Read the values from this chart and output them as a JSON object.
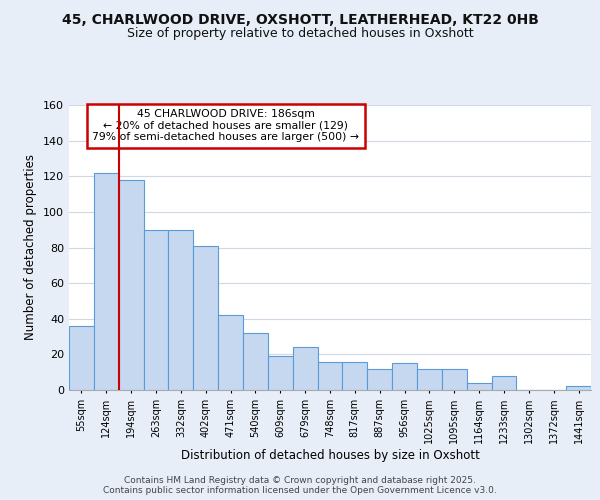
{
  "title_line1": "45, CHARLWOOD DRIVE, OXSHOTT, LEATHERHEAD, KT22 0HB",
  "title_line2": "Size of property relative to detached houses in Oxshott",
  "xlabel": "Distribution of detached houses by size in Oxshott",
  "ylabel": "Number of detached properties",
  "bar_labels": [
    "55sqm",
    "124sqm",
    "194sqm",
    "263sqm",
    "332sqm",
    "402sqm",
    "471sqm",
    "540sqm",
    "609sqm",
    "679sqm",
    "748sqm",
    "817sqm",
    "887sqm",
    "956sqm",
    "1025sqm",
    "1095sqm",
    "1164sqm",
    "1233sqm",
    "1302sqm",
    "1372sqm",
    "1441sqm"
  ],
  "bar_values": [
    36,
    122,
    118,
    90,
    90,
    81,
    42,
    32,
    19,
    24,
    16,
    16,
    12,
    15,
    12,
    12,
    4,
    8,
    0,
    0,
    2
  ],
  "bar_color": "#c5d8f0",
  "bar_edge_color": "#5b9bd5",
  "ylim": [
    0,
    160
  ],
  "yticks": [
    0,
    20,
    40,
    60,
    80,
    100,
    120,
    140,
    160
  ],
  "red_line_x": 2.0,
  "red_line_color": "#cc0000",
  "annotation_box_text": "45 CHARLWOOD DRIVE: 186sqm\n← 20% of detached houses are smaller (129)\n79% of semi-detached houses are larger (500) →",
  "annotation_box_color": "#cc0000",
  "footer_text": "Contains HM Land Registry data © Crown copyright and database right 2025.\nContains public sector information licensed under the Open Government Licence v3.0.",
  "bg_color": "#ffffff",
  "grid_color": "#d0d8e8",
  "fig_bg_color": "#e8eef8"
}
